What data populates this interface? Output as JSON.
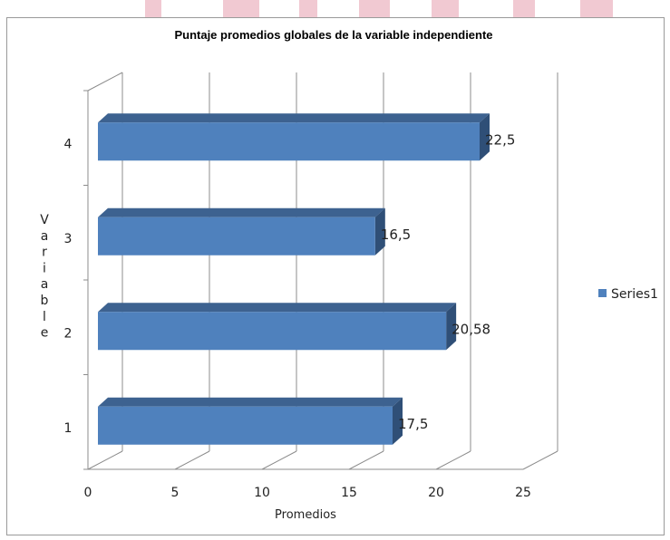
{
  "chart_data": {
    "type": "bar",
    "orientation": "horizontal",
    "style": "3d",
    "title": "Puntaje promedios globales de la variable independiente",
    "xlabel": "Promedios",
    "ylabel": "Variable",
    "categories": [
      "1",
      "2",
      "3",
      "4"
    ],
    "series": [
      {
        "name": "Series1",
        "values": [
          17.5,
          20.58,
          16.5,
          22.5
        ],
        "color": "#4f81bd"
      }
    ],
    "data_labels": [
      "17,5",
      "20,58",
      "16,5",
      "22,5"
    ],
    "x_ticks": [
      0,
      5,
      10,
      15,
      20,
      25
    ],
    "xlim": [
      0,
      25
    ],
    "grid": true,
    "legend_position": "right"
  }
}
